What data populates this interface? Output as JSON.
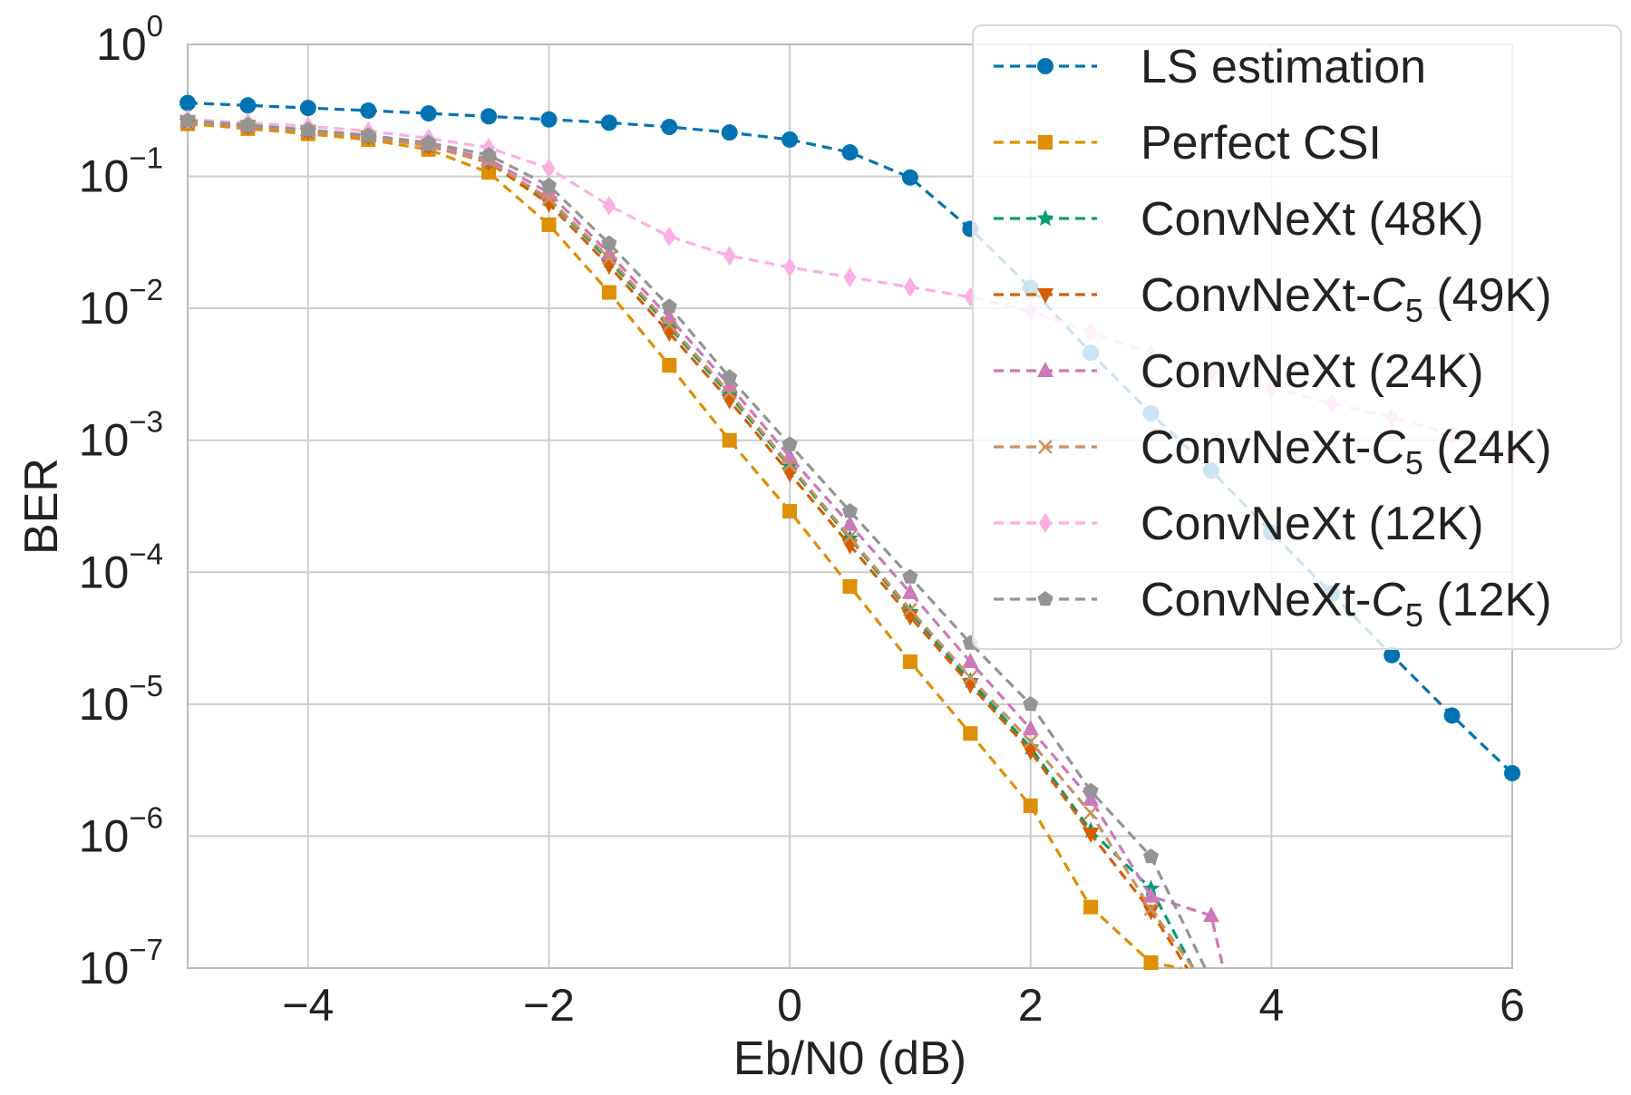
{
  "chart_data": {
    "type": "line",
    "title": "",
    "xlabel": "Eb/N0 (dB)",
    "ylabel": "BER",
    "xlim": [
      -5,
      6
    ],
    "ylim": [
      1e-07,
      1
    ],
    "yscale": "log",
    "grid": true,
    "legend_position": "top-right",
    "x_ticks": [
      {
        "value": -4,
        "label": "−4"
      },
      {
        "value": -2,
        "label": "−2"
      },
      {
        "value": 0,
        "label": "0"
      },
      {
        "value": 2,
        "label": "2"
      },
      {
        "value": 4,
        "label": "4"
      },
      {
        "value": 6,
        "label": "6"
      }
    ],
    "y_ticks": [
      {
        "value": 1,
        "base": "10",
        "exp": "0"
      },
      {
        "value": 0.1,
        "base": "10",
        "exp": "−1"
      },
      {
        "value": 0.01,
        "base": "10",
        "exp": "−2"
      },
      {
        "value": 0.001,
        "base": "10",
        "exp": "−3"
      },
      {
        "value": 0.0001,
        "base": "10",
        "exp": "−4"
      },
      {
        "value": 1e-05,
        "base": "10",
        "exp": "−5"
      },
      {
        "value": 1e-06,
        "base": "10",
        "exp": "−6"
      },
      {
        "value": 1e-07,
        "base": "10",
        "exp": "−7"
      }
    ],
    "series": [
      {
        "name": "LS estimation",
        "name_main": "LS estimation",
        "name_sub": "",
        "name_tail": "",
        "color": "#0173b2",
        "marker": "circle",
        "x": [
          -5,
          -4.5,
          -4,
          -3.5,
          -3,
          -2.5,
          -2,
          -1.5,
          -1,
          -0.5,
          0,
          0.5,
          1,
          1.5,
          2,
          2.5,
          3,
          3.5,
          4,
          4.5,
          5,
          5.5,
          6
        ],
        "y": [
          0.36,
          0.345,
          0.33,
          0.315,
          0.3,
          0.285,
          0.27,
          0.255,
          0.237,
          0.215,
          0.19,
          0.152,
          0.098,
          0.04,
          0.0143,
          0.0046,
          0.0016,
          0.00059,
          0.0002,
          6.9e-05,
          2.35e-05,
          8.2e-06,
          3e-06
        ]
      },
      {
        "name": "Perfect CSI",
        "name_main": "Perfect CSI",
        "name_sub": "",
        "name_tail": "",
        "color": "#de8f05",
        "marker": "square",
        "x": [
          -5,
          -4.5,
          -4,
          -3.5,
          -3,
          -2.5,
          -2,
          -1.5,
          -1,
          -0.5,
          0,
          0.5,
          1,
          1.5,
          2,
          2.5,
          3,
          3.25
        ],
        "y": [
          0.25,
          0.23,
          0.21,
          0.19,
          0.16,
          0.107,
          0.043,
          0.0132,
          0.0037,
          0.001,
          0.00029,
          7.8e-05,
          2.1e-05,
          6e-06,
          1.7e-06,
          2.9e-07,
          1.1e-07,
          1e-07
        ]
      },
      {
        "name": "ConvNeXt (48K)",
        "name_main": "ConvNeXt (48K)",
        "name_sub": "",
        "name_tail": "",
        "color": "#029e73",
        "marker": "star",
        "x": [
          -5,
          -4.5,
          -4,
          -3.5,
          -3,
          -2.5,
          -2,
          -1.5,
          -1,
          -0.5,
          0,
          0.5,
          1,
          1.5,
          2,
          2.5,
          3,
          3.35
        ],
        "y": [
          0.26,
          0.24,
          0.22,
          0.2,
          0.17,
          0.13,
          0.067,
          0.023,
          0.0072,
          0.0022,
          0.00063,
          0.00018,
          5e-05,
          1.5e-05,
          4.7e-06,
          1.1e-06,
          4e-07,
          1e-07
        ]
      },
      {
        "name": "ConvNeXt-C5 (49K)",
        "name_main": "ConvNeXt-C",
        "name_sub": "5",
        "name_tail": " (49K)",
        "color": "#d55e00",
        "marker": "triangle-down",
        "x": [
          -5,
          -4.5,
          -4,
          -3.5,
          -3,
          -2.5,
          -2,
          -1.5,
          -1,
          -0.5,
          0,
          0.5,
          1,
          1.5,
          2,
          2.5,
          3,
          3.3
        ],
        "y": [
          0.26,
          0.24,
          0.22,
          0.2,
          0.17,
          0.128,
          0.062,
          0.021,
          0.0065,
          0.002,
          0.00056,
          0.00016,
          4.6e-05,
          1.4e-05,
          4.4e-06,
          1.04e-06,
          2.7e-07,
          1e-07
        ]
      },
      {
        "name": "ConvNeXt (24K)",
        "name_main": "ConvNeXt (24K)",
        "name_sub": "",
        "name_tail": "",
        "color": "#cc78bc",
        "marker": "triangle-up",
        "x": [
          -5,
          -4.5,
          -4,
          -3.5,
          -3,
          -2.5,
          -2,
          -1.5,
          -1,
          -0.5,
          0,
          0.5,
          1,
          1.5,
          2,
          2.5,
          3,
          3.5,
          3.6
        ],
        "y": [
          0.265,
          0.245,
          0.225,
          0.205,
          0.175,
          0.135,
          0.075,
          0.026,
          0.0085,
          0.0026,
          0.00075,
          0.00023,
          7e-05,
          2.1e-05,
          6.5e-06,
          1.9e-06,
          3.5e-07,
          2.5e-07,
          1e-07
        ]
      },
      {
        "name": "ConvNeXt-C5 (24K)",
        "name_main": "ConvNeXt-C",
        "name_sub": "5",
        "name_tail": " (24K)",
        "color": "#ca9161",
        "marker": "x",
        "x": [
          -5,
          -4.5,
          -4,
          -3.5,
          -3,
          -2.5,
          -2,
          -1.5,
          -1,
          -0.5,
          0,
          0.5,
          1,
          1.5,
          2,
          2.5,
          3,
          3.35
        ],
        "y": [
          0.26,
          0.24,
          0.22,
          0.2,
          0.17,
          0.13,
          0.068,
          0.024,
          0.0075,
          0.0023,
          0.00065,
          0.000185,
          5.2e-05,
          1.6e-05,
          5.2e-06,
          1.5e-06,
          2.8e-07,
          1e-07
        ]
      },
      {
        "name": "ConvNeXt (12K)",
        "name_main": "ConvNeXt (12K)",
        "name_sub": "",
        "name_tail": "",
        "color": "#fbafe4",
        "marker": "diamond",
        "x": [
          -5,
          -4.5,
          -4,
          -3.5,
          -3,
          -2.5,
          -2,
          -1.5,
          -1,
          -0.5,
          0,
          0.5,
          1,
          1.5,
          2,
          2.5,
          3,
          3.5,
          4,
          4.5,
          5,
          5.5,
          6
        ],
        "y": [
          0.27,
          0.255,
          0.24,
          0.22,
          0.195,
          0.165,
          0.115,
          0.06,
          0.035,
          0.025,
          0.0205,
          0.0172,
          0.0145,
          0.0122,
          0.0095,
          0.0066,
          0.0045,
          0.0033,
          0.0025,
          0.0019,
          0.0015,
          0.0011,
          0.0008
        ]
      },
      {
        "name": "ConvNeXt-C5 (12K)",
        "name_main": "ConvNeXt-C",
        "name_sub": "5",
        "name_tail": " (12K)",
        "color": "#949494",
        "marker": "pentagon",
        "x": [
          -5,
          -4.5,
          -4,
          -3.5,
          -3,
          -2.5,
          -2,
          -1.5,
          -1,
          -0.5,
          0,
          0.5,
          1,
          1.5,
          2,
          2.5,
          3,
          3.45
        ],
        "y": [
          0.265,
          0.245,
          0.225,
          0.205,
          0.18,
          0.145,
          0.085,
          0.031,
          0.0103,
          0.003,
          0.00093,
          0.00029,
          9.2e-05,
          2.9e-05,
          1e-05,
          2.2e-06,
          7e-07,
          1e-07
        ]
      }
    ]
  }
}
